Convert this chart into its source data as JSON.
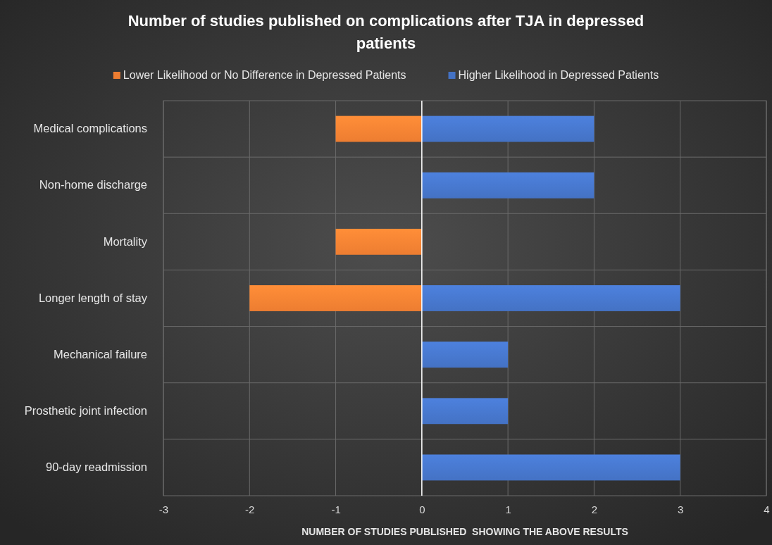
{
  "chart_data": {
    "type": "bar",
    "orientation": "horizontal",
    "title": "Number of studies published on complications after TJA in depressed patients",
    "xlabel": "NUMBER OF STUDIES PUBLISHED  SHOWING THE ABOVE RESULTS",
    "categories": [
      "Medical complications",
      "Non-home discharge",
      "Mortality",
      "Longer length of stay",
      "Mechanical failure",
      "Prosthetic joint infection",
      "90-day readmission"
    ],
    "series": [
      {
        "name": "Lower Likelihood or No Difference in Depressed Patients",
        "color": "#ed7d31",
        "values": [
          -1,
          null,
          -1,
          -2,
          null,
          null,
          null
        ]
      },
      {
        "name": "Higher Likelihood in Depressed Patients",
        "color": "#4472c4",
        "values": [
          2,
          2,
          null,
          3,
          1,
          1,
          3
        ]
      }
    ],
    "xlim": [
      -3,
      4
    ],
    "xticks": [
      -3,
      -2,
      -1,
      0,
      1,
      2,
      3,
      4
    ],
    "grid": true,
    "legend": "top"
  }
}
